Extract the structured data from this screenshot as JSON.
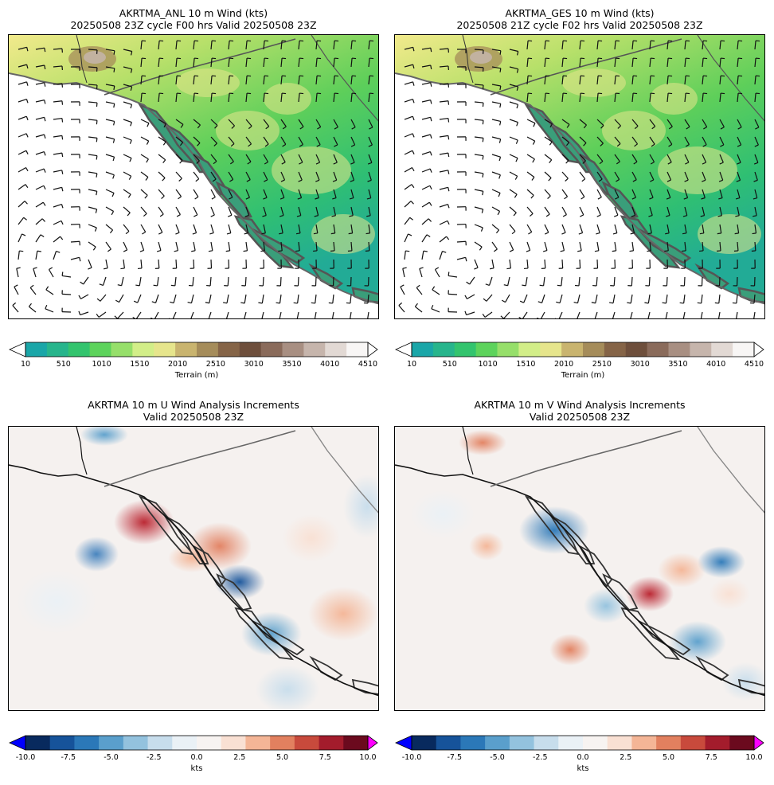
{
  "panels": [
    {
      "title_line1": "AKRTMA_ANL 10 m Wind (kts)",
      "title_line2": "20250508 23Z cycle F00 hrs Valid 20250508 23Z"
    },
    {
      "title_line1": "AKRTMA_GES 10 m Wind (kts)",
      "title_line2": "20250508 21Z cycle F02 hrs Valid 20250508 23Z"
    },
    {
      "title_line1": "AKRTMA 10 m U Wind Analysis Increments",
      "title_line2": "Valid 20250508 23Z"
    },
    {
      "title_line1": "AKRTMA 10 m V Wind Analysis Increments",
      "title_line2": "Valid 20250508 23Z"
    }
  ],
  "colorbars": {
    "terrain": {
      "label": "Terrain (m)",
      "ticks": [
        "10",
        "510",
        "1010",
        "1510",
        "2010",
        "2510",
        "3010",
        "3510",
        "4010",
        "4510"
      ],
      "colors": [
        "#1aa6a8",
        "#27b58c",
        "#33c46e",
        "#5dd35c",
        "#96df6a",
        "#d2ee88",
        "#e6e58c",
        "#c9b46f",
        "#a58c5a",
        "#856447",
        "#6e4f3c",
        "#8a6b5b",
        "#a88f82",
        "#c6b5ac",
        "#e2d9d4",
        "#f8f6f5"
      ]
    },
    "increments": {
      "label": "kts",
      "ticks": [
        "-10.0",
        "-7.5",
        "-5.0",
        "-2.5",
        "0.0",
        "2.5",
        "5.0",
        "7.5",
        "10.0"
      ],
      "colors": [
        "#082a5e",
        "#16539a",
        "#2b78b8",
        "#5a9fcc",
        "#93c2de",
        "#c7ddec",
        "#eaf1f6",
        "#f7f3f1",
        "#f9e0d3",
        "#f4b596",
        "#e2805f",
        "#c84a3c",
        "#a31c2c",
        "#6b0a1e"
      ],
      "under_color": "#0000ff",
      "over_color": "#ff00ff"
    }
  }
}
